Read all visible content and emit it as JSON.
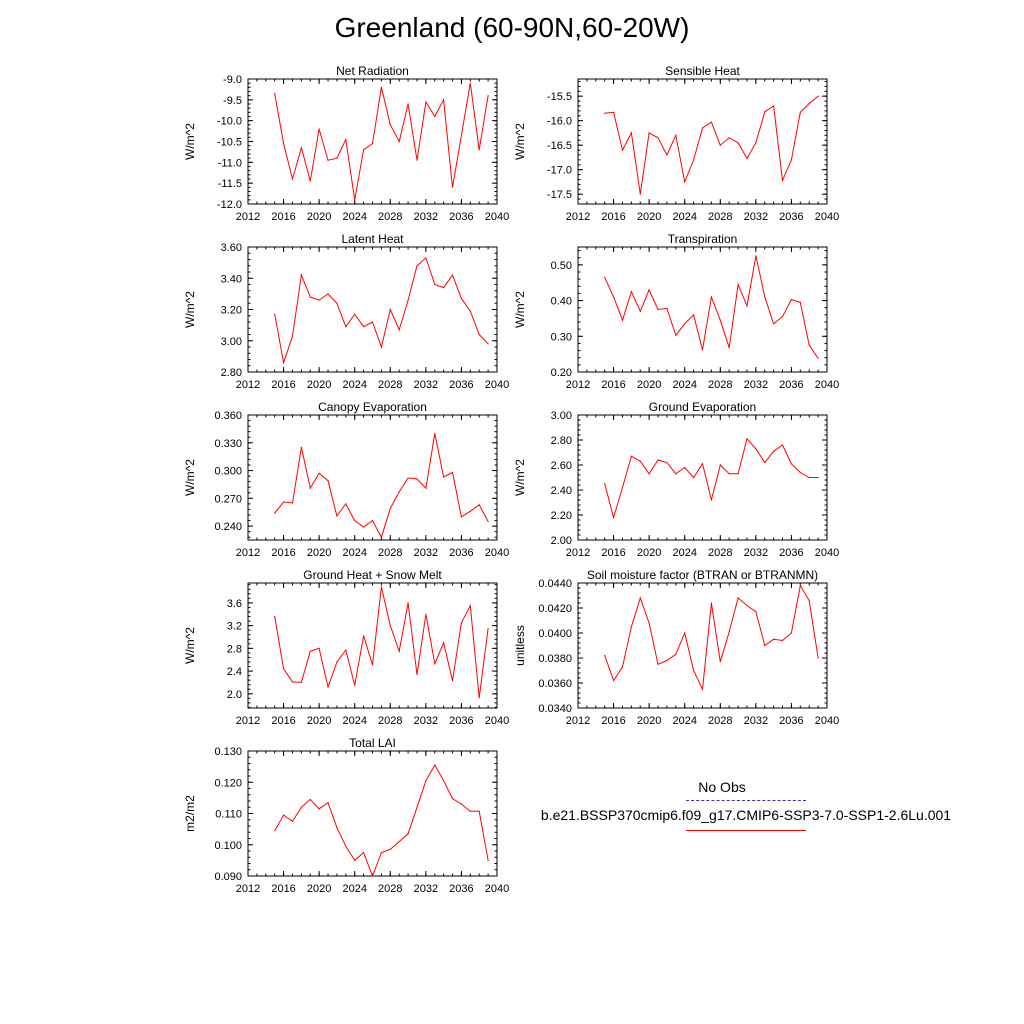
{
  "title": "Greenland (60-90N,60-20W)",
  "legend": {
    "obs_label": "No Obs",
    "case_label": "b.e21.BSSP370cmip6.f09_g17.CMIP6-SSP3-7.0-SSP1-2.6Lu.001",
    "obs_color": "#3333aa",
    "case_color": "#ff0000"
  },
  "chart_data": [
    {
      "type": "line",
      "title": "Net Radiation",
      "ylabel": "W/m^2",
      "xlim": [
        2012,
        2040
      ],
      "xticks": [
        "2012",
        "2016",
        "2020",
        "2024",
        "2028",
        "2032",
        "2036",
        "2040"
      ],
      "ylim": [
        -12.0,
        -9.0
      ],
      "yticks": [
        "-9.0",
        "-9.5",
        "-10.0",
        "-10.5",
        "-11.0",
        "-11.5",
        "-12.0"
      ],
      "series": [
        {
          "x": [
            2015,
            2016,
            2017,
            2018,
            2019,
            2020,
            2021,
            2022,
            2023,
            2024,
            2025,
            2026,
            2027,
            2028,
            2029,
            2030,
            2031,
            2032,
            2033,
            2034,
            2035,
            2036,
            2037,
            2038,
            2039
          ],
          "values": [
            -9.35,
            -10.55,
            -11.4,
            -10.65,
            -11.45,
            -10.2,
            -10.95,
            -10.9,
            -10.45,
            -11.9,
            -10.7,
            -10.55,
            -9.2,
            -10.1,
            -10.5,
            -9.6,
            -10.95,
            -9.55,
            -9.9,
            -9.5,
            -11.6,
            -10.35,
            -9.1,
            -10.7,
            -9.4
          ]
        }
      ]
    },
    {
      "type": "line",
      "title": "Sensible Heat",
      "ylabel": "W/m^2",
      "xlim": [
        2012,
        2040
      ],
      "xticks": [
        "2012",
        "2016",
        "2020",
        "2024",
        "2028",
        "2032",
        "2036",
        "2040"
      ],
      "ylim": [
        -17.7,
        -15.15
      ],
      "yticks": [
        "-15.5",
        "-16.0",
        "-16.5",
        "-17.0",
        "-17.5"
      ],
      "series": [
        {
          "x": [
            2015,
            2016,
            2017,
            2018,
            2019,
            2020,
            2021,
            2022,
            2023,
            2024,
            2025,
            2026,
            2027,
            2028,
            2029,
            2030,
            2031,
            2032,
            2033,
            2034,
            2035,
            2036,
            2037,
            2038,
            2039
          ],
          "values": [
            -15.85,
            -15.83,
            -16.6,
            -16.25,
            -17.5,
            -16.25,
            -16.35,
            -16.7,
            -16.3,
            -17.25,
            -16.8,
            -16.15,
            -16.03,
            -16.5,
            -16.35,
            -16.45,
            -16.77,
            -16.45,
            -15.82,
            -15.7,
            -17.22,
            -16.8,
            -15.83,
            -15.65,
            -15.5
          ]
        }
      ]
    },
    {
      "type": "line",
      "title": "Latent Heat",
      "ylabel": "W/m^2",
      "xlim": [
        2012,
        2040
      ],
      "xticks": [
        "2012",
        "2016",
        "2020",
        "2024",
        "2028",
        "2032",
        "2036",
        "2040"
      ],
      "ylim": [
        2.8,
        3.6
      ],
      "yticks": [
        "3.60",
        "3.40",
        "3.20",
        "3.00",
        "2.80"
      ],
      "series": [
        {
          "x": [
            2015,
            2016,
            2017,
            2018,
            2019,
            2020,
            2021,
            2022,
            2023,
            2024,
            2025,
            2026,
            2027,
            2028,
            2029,
            2030,
            2031,
            2032,
            2033,
            2034,
            2035,
            2036,
            2037,
            2038,
            2039
          ],
          "values": [
            3.17,
            2.86,
            3.03,
            3.42,
            3.28,
            3.26,
            3.3,
            3.24,
            3.09,
            3.17,
            3.09,
            3.12,
            2.96,
            3.2,
            3.07,
            3.26,
            3.48,
            3.53,
            3.36,
            3.34,
            3.42,
            3.27,
            3.19,
            3.04,
            2.98
          ]
        }
      ]
    },
    {
      "type": "line",
      "title": "Transpiration",
      "ylabel": "W/m^2",
      "xlim": [
        2012,
        2040
      ],
      "xticks": [
        "2012",
        "2016",
        "2020",
        "2024",
        "2028",
        "2032",
        "2036",
        "2040"
      ],
      "ylim": [
        0.2,
        0.55
      ],
      "yticks": [
        "0.50",
        "0.40",
        "0.30",
        "0.20"
      ],
      "series": [
        {
          "x": [
            2015,
            2016,
            2017,
            2018,
            2019,
            2020,
            2021,
            2022,
            2023,
            2024,
            2025,
            2026,
            2027,
            2028,
            2029,
            2030,
            2031,
            2032,
            2033,
            2034,
            2035,
            2036,
            2037,
            2038,
            2039
          ],
          "values": [
            0.465,
            0.41,
            0.345,
            0.425,
            0.37,
            0.43,
            0.375,
            0.378,
            0.303,
            0.335,
            0.36,
            0.262,
            0.41,
            0.345,
            0.268,
            0.445,
            0.385,
            0.525,
            0.41,
            0.335,
            0.355,
            0.403,
            0.395,
            0.275,
            0.238
          ]
        }
      ]
    },
    {
      "type": "line",
      "title": "Canopy Evaporation",
      "ylabel": "W/m^2",
      "xlim": [
        2012,
        2040
      ],
      "xticks": [
        "2012",
        "2016",
        "2020",
        "2024",
        "2028",
        "2032",
        "2036",
        "2040"
      ],
      "ylim": [
        0.225,
        0.36
      ],
      "yticks": [
        "0.360",
        "0.330",
        "0.300",
        "0.270",
        "0.240"
      ],
      "series": [
        {
          "x": [
            2015,
            2016,
            2017,
            2018,
            2019,
            2020,
            2021,
            2022,
            2023,
            2024,
            2025,
            2026,
            2027,
            2028,
            2029,
            2030,
            2031,
            2032,
            2033,
            2034,
            2035,
            2036,
            2037,
            2038,
            2039
          ],
          "values": [
            0.254,
            0.266,
            0.265,
            0.325,
            0.281,
            0.297,
            0.289,
            0.251,
            0.264,
            0.246,
            0.239,
            0.246,
            0.228,
            0.259,
            0.277,
            0.292,
            0.291,
            0.281,
            0.34,
            0.293,
            0.298,
            0.25,
            0.256,
            0.263,
            0.245
          ]
        }
      ]
    },
    {
      "type": "line",
      "title": "Ground Evaporation",
      "ylabel": "W/m^2",
      "xlim": [
        2012,
        2040
      ],
      "xticks": [
        "2012",
        "2016",
        "2020",
        "2024",
        "2028",
        "2032",
        "2036",
        "2040"
      ],
      "ylim": [
        2.0,
        3.0
      ],
      "yticks": [
        "3.00",
        "2.80",
        "2.60",
        "2.40",
        "2.20",
        "2.00"
      ],
      "series": [
        {
          "x": [
            2015,
            2016,
            2017,
            2018,
            2019,
            2020,
            2021,
            2022,
            2023,
            2024,
            2025,
            2026,
            2027,
            2028,
            2029,
            2030,
            2031,
            2032,
            2033,
            2034,
            2035,
            2036,
            2037,
            2038,
            2039
          ],
          "values": [
            2.45,
            2.18,
            2.42,
            2.67,
            2.63,
            2.53,
            2.64,
            2.62,
            2.53,
            2.58,
            2.5,
            2.61,
            2.32,
            2.6,
            2.53,
            2.53,
            2.81,
            2.73,
            2.62,
            2.71,
            2.76,
            2.61,
            2.54,
            2.5,
            2.5
          ]
        }
      ]
    },
    {
      "type": "line",
      "title": "Ground Heat + Snow Melt",
      "ylabel": "W/m^2",
      "xlim": [
        2012,
        2040
      ],
      "xticks": [
        "2012",
        "2016",
        "2020",
        "2024",
        "2028",
        "2032",
        "2036",
        "2040"
      ],
      "ylim": [
        1.75,
        3.95
      ],
      "yticks": [
        "3.6",
        "3.2",
        "2.8",
        "2.4",
        "2.0"
      ],
      "series": [
        {
          "x": [
            2015,
            2016,
            2017,
            2018,
            2019,
            2020,
            2021,
            2022,
            2023,
            2024,
            2025,
            2026,
            2027,
            2028,
            2029,
            2030,
            2031,
            2032,
            2033,
            2034,
            2035,
            2036,
            2037,
            2038,
            2039
          ],
          "values": [
            3.36,
            2.44,
            2.21,
            2.2,
            2.75,
            2.8,
            2.12,
            2.56,
            2.77,
            2.15,
            3.02,
            2.51,
            3.88,
            3.2,
            2.75,
            3.6,
            2.34,
            3.4,
            2.53,
            2.9,
            2.23,
            3.25,
            3.55,
            1.93,
            3.15
          ]
        }
      ]
    },
    {
      "type": "line",
      "title": "Soil moisture factor (BTRAN or BTRANMN)",
      "ylabel": "unitless",
      "xlim": [
        2012,
        2040
      ],
      "xticks": [
        "2012",
        "2016",
        "2020",
        "2024",
        "2028",
        "2032",
        "2036",
        "2040"
      ],
      "ylim": [
        0.034,
        0.044
      ],
      "yticks": [
        "0.0440",
        "0.0420",
        "0.0400",
        "0.0380",
        "0.0360",
        "0.0340"
      ],
      "series": [
        {
          "x": [
            2015,
            2016,
            2017,
            2018,
            2019,
            2020,
            2021,
            2022,
            2023,
            2024,
            2025,
            2026,
            2027,
            2028,
            2029,
            2030,
            2031,
            2032,
            2033,
            2034,
            2035,
            2036,
            2037,
            2038,
            2039
          ],
          "values": [
            0.0382,
            0.0362,
            0.0373,
            0.0405,
            0.0428,
            0.0408,
            0.0375,
            0.0378,
            0.0383,
            0.04,
            0.037,
            0.0355,
            0.0424,
            0.0377,
            0.0401,
            0.0428,
            0.0422,
            0.0417,
            0.039,
            0.0395,
            0.0394,
            0.04,
            0.0438,
            0.0426,
            0.038
          ]
        }
      ]
    },
    {
      "type": "line",
      "title": "Total LAI",
      "ylabel": "m2/m2",
      "xlim": [
        2012,
        2040
      ],
      "xticks": [
        "2012",
        "2016",
        "2020",
        "2024",
        "2028",
        "2032",
        "2036",
        "2040"
      ],
      "ylim": [
        0.09,
        0.13
      ],
      "yticks": [
        "0.130",
        "0.120",
        "0.110",
        "0.100",
        "0.090"
      ],
      "series": [
        {
          "x": [
            2015,
            2016,
            2017,
            2018,
            2019,
            2020,
            2021,
            2022,
            2023,
            2024,
            2025,
            2026,
            2027,
            2028,
            2029,
            2030,
            2031,
            2032,
            2033,
            2034,
            2035,
            2036,
            2037,
            2038,
            2039
          ],
          "values": [
            0.1045,
            0.1095,
            0.1075,
            0.112,
            0.1145,
            0.1115,
            0.1135,
            0.1055,
            0.0995,
            0.095,
            0.0975,
            0.09,
            0.0975,
            0.0985,
            0.101,
            0.1035,
            0.112,
            0.1205,
            0.1255,
            0.1205,
            0.1148,
            0.113,
            0.1107,
            0.1107,
            0.095
          ]
        }
      ]
    }
  ]
}
